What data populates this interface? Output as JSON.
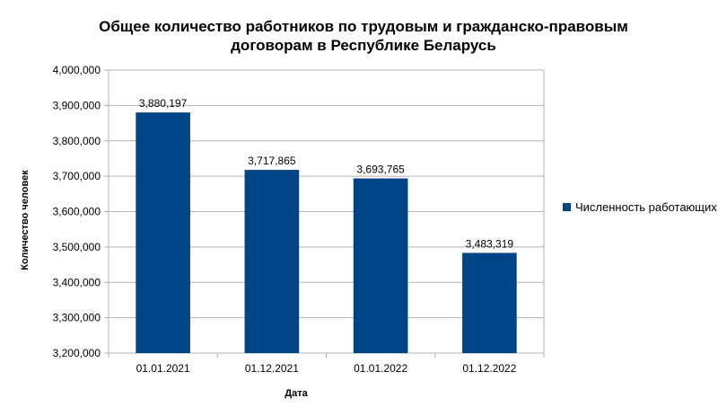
{
  "chart_data": {
    "type": "bar",
    "title_lines": [
      "Общее количество работников по трудовым и гражданско-правовым",
      "договорам в Республике Беларусь"
    ],
    "xlabel": "Дата",
    "ylabel": "Количество человек",
    "categories": [
      "01.01.2021",
      "01.12.2021",
      "01.01.2022",
      "01.12.2022"
    ],
    "series": [
      {
        "name": "Численность работающих",
        "values": [
          3880197,
          3717865,
          3693765,
          3483319
        ],
        "labels": [
          "3,880,197",
          "3,717,865",
          "3,693,765",
          "3,483,319"
        ]
      }
    ],
    "ylim": [
      3200000,
      4000000
    ],
    "yticks": [
      3200000,
      3300000,
      3400000,
      3500000,
      3600000,
      3700000,
      3800000,
      3900000,
      4000000
    ],
    "ytick_labels": [
      "3,200,000",
      "3,300,000",
      "3,400,000",
      "3,500,000",
      "3,600,000",
      "3,700,000",
      "3,800,000",
      "3,900,000",
      "4,000,000"
    ],
    "grid": true,
    "legend_position": "right",
    "bar_color": "#004586",
    "grid_color": "#b3b3b3"
  }
}
